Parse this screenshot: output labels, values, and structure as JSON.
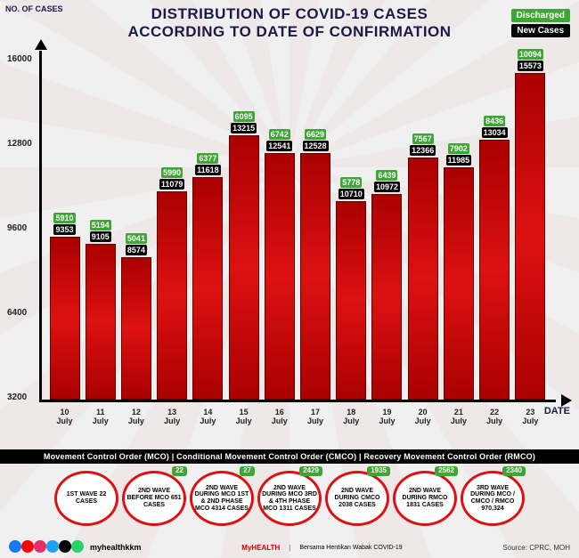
{
  "title_line1": "DISTRIBUTION OF COVID-19 CASES",
  "title_line2": "ACCORDING TO DATE OF CONFIRMATION",
  "legend": {
    "discharged": "Discharged",
    "newcases": "New Cases"
  },
  "yaxis_label": "NO. OF\nCASES",
  "xaxis_label": "DATE",
  "chart": {
    "type": "bar",
    "ylim": [
      3200,
      16000
    ],
    "yticks": [
      3200,
      6400,
      9600,
      12800,
      16000
    ],
    "bar_color": "#c91818",
    "discharged_color": "#3fa535",
    "newcases_color": "#000000",
    "background_color": "#f0f0f0",
    "axis_color": "#000000",
    "data": [
      {
        "date": "10 July",
        "new_cases": 9353,
        "discharged": 5910
      },
      {
        "date": "11 July",
        "new_cases": 9105,
        "discharged": 5194
      },
      {
        "date": "12 July",
        "new_cases": 8574,
        "discharged": 5041
      },
      {
        "date": "13 July",
        "new_cases": 11079,
        "discharged": 5990
      },
      {
        "date": "14 July",
        "new_cases": 11618,
        "discharged": 6377
      },
      {
        "date": "15 July",
        "new_cases": 13215,
        "discharged": 6095
      },
      {
        "date": "16 July",
        "new_cases": 12541,
        "discharged": 6742
      },
      {
        "date": "17 July",
        "new_cases": 12528,
        "discharged": 6629
      },
      {
        "date": "18 July",
        "new_cases": 10710,
        "discharged": 5778
      },
      {
        "date": "19 July",
        "new_cases": 10972,
        "discharged": 6439
      },
      {
        "date": "20 July",
        "new_cases": 12366,
        "discharged": 7567
      },
      {
        "date": "21 July",
        "new_cases": 11985,
        "discharged": 7902
      },
      {
        "date": "22 July",
        "new_cases": 13034,
        "discharged": 8436
      },
      {
        "date": "23 July",
        "new_cases": 15573,
        "discharged": 10094
      }
    ]
  },
  "phase_strip": "Movement Control Order (MCO)  |  Conditional Movement Control Order (CMCO)  |  Recovery Movement Control Order (RMCO)",
  "waves": [
    {
      "label": "1ST WAVE 22 CASES",
      "badge": null
    },
    {
      "label": "2ND WAVE BEFORE MCO 651 CASES",
      "badge": "22"
    },
    {
      "label": "2ND WAVE DURING MCO 1ST & 2ND PHASE MCO 4314 CASES",
      "badge": "27"
    },
    {
      "label": "2ND WAVE DURING MCO 3RD & 4TH PHASE MCO 1311 CASES",
      "badge": "2429"
    },
    {
      "label": "2ND WAVE DURING CMCO 2038 CASES",
      "badge": "1935"
    },
    {
      "label": "2ND WAVE DURING RMCO 1831 CASES",
      "badge": "2562"
    },
    {
      "label": "3RD WAVE DURING MCO / CMCO / RMCO 970,324",
      "badge": "2340"
    }
  ],
  "footer": {
    "handle": "myhealthkkm",
    "logo1": "MyHEALTH",
    "logo2": "Bersama Hentikan Wabak COVID-19",
    "source": "Source: CPRC, MOH",
    "social_colors": [
      "#1877f2",
      "#ff0000",
      "#e1306c",
      "#1da1f2",
      "#000000",
      "#25d366"
    ]
  }
}
